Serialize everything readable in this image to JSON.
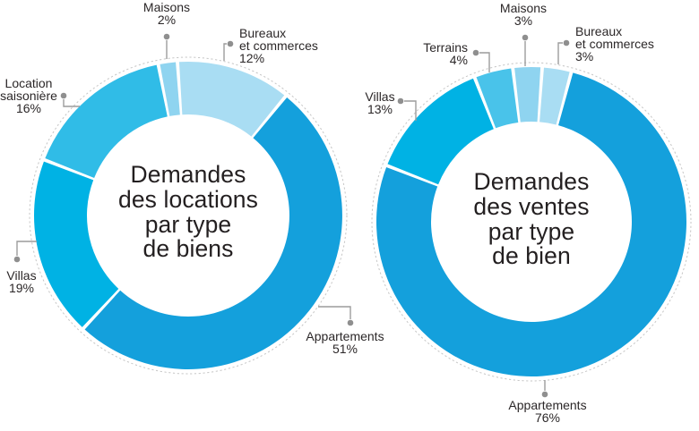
{
  "style": {
    "background": "#FFFFFF",
    "text_color": "#2B2728",
    "title_color": "#231F20",
    "connector_color": "#9C9C9C",
    "dot_color": "#8F8F8F",
    "dashed_ring_color": "#C6C6C6",
    "segment_gap_color": "#FFFFFF"
  },
  "chart_data": [
    {
      "type": "donut",
      "id": "demandes-locations",
      "title": "Demandes des locations par type de biens",
      "title_lines": [
        "Demandes",
        "des locations",
        "par type",
        "de biens"
      ],
      "unit": "%",
      "segments": [
        {
          "key": "bureaux-et-commerces",
          "label": "Bureaux et commerces",
          "label_lines": [
            "Bureaux",
            "et commerces"
          ],
          "value": 12,
          "pct": "12%",
          "color": "#A9DDF3"
        },
        {
          "key": "appartements",
          "label": "Appartements",
          "label_lines": [
            "Appartements"
          ],
          "value": 51,
          "pct": "51%",
          "color": "#14A0DC"
        },
        {
          "key": "villas",
          "label": "Villas",
          "label_lines": [
            "Villas"
          ],
          "value": 19,
          "pct": "19%",
          "color": "#00B2E4"
        },
        {
          "key": "location-saisoniere",
          "label": "Location saisonière",
          "label_lines": [
            "Location",
            "saisonière"
          ],
          "value": 16,
          "pct": "16%",
          "color": "#30BCE7"
        },
        {
          "key": "maisons",
          "label": "Maisons",
          "label_lines": [
            "Maisons"
          ],
          "value": 2,
          "pct": "2%",
          "color": "#8FD4F0"
        }
      ]
    },
    {
      "type": "donut",
      "id": "demandes-ventes",
      "title": "Demandes des ventes par type de bien",
      "title_lines": [
        "Demandes",
        "des ventes",
        "par type",
        "de bien"
      ],
      "unit": "%",
      "segments": [
        {
          "key": "bureaux-et-commerces",
          "label": "Bureaux et commerces",
          "label_lines": [
            "Bureaux",
            "et commerces"
          ],
          "value": 3,
          "pct": "3%",
          "color": "#A9DDF3"
        },
        {
          "key": "appartements",
          "label": "Appartements",
          "label_lines": [
            "Appartements"
          ],
          "value": 76,
          "pct": "76%",
          "color": "#14A0DC"
        },
        {
          "key": "villas",
          "label": "Villas",
          "label_lines": [
            "Villas"
          ],
          "value": 13,
          "pct": "13%",
          "color": "#00B2E4"
        },
        {
          "key": "terrains",
          "label": "Terrains",
          "label_lines": [
            "Terrains"
          ],
          "value": 4,
          "pct": "4%",
          "color": "#49C3EA"
        },
        {
          "key": "maisons",
          "label": "Maisons",
          "label_lines": [
            "Maisons"
          ],
          "value": 3,
          "pct": "3%",
          "color": "#8FD4F0"
        }
      ]
    }
  ]
}
